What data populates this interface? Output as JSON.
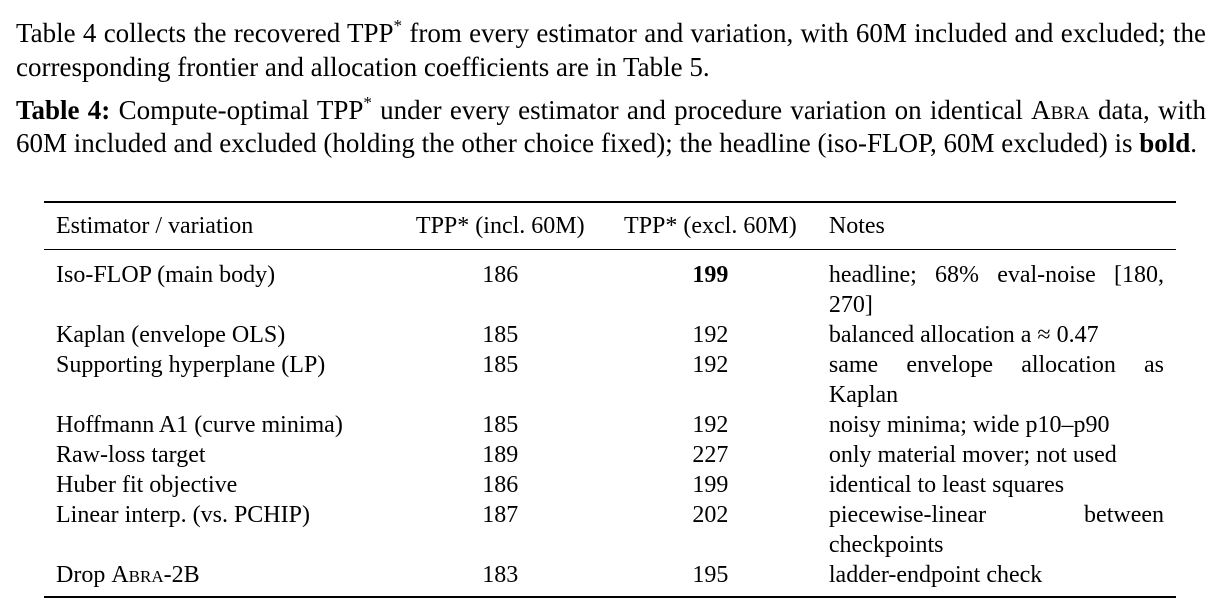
{
  "intro": {
    "part1": "Table 4 collects the recovered ",
    "tpp": "TPP",
    "sup": "*",
    "part2": " from every estimator and variation, with 60M included and excluded; the corresponding frontier and allocation coefficients are in Table 5."
  },
  "caption": {
    "label": "Table 4:",
    "text1": " Compute-optimal ",
    "tpp": "TPP",
    "sup": "*",
    "text2": " under every estimator and procedure variation on identical ",
    "abra": "Abra",
    "text3": " data, with 60M included and excluded (holding the other choice fixed); the headline (iso-FLOP, 60M excluded) is ",
    "bold_word": "bold",
    "text4": "."
  },
  "table": {
    "headers": [
      "Estimator / variation",
      "TPP* (incl. 60M)",
      "TPP* (excl. 60M)",
      "Notes"
    ],
    "rows": [
      {
        "estimator": "Iso-FLOP (main body)",
        "incl": "186",
        "excl": "199",
        "notes": "headline; 68% eval-noise [180, 270]"
      },
      {
        "estimator": "Kaplan (envelope OLS)",
        "incl": "185",
        "excl": "192",
        "notes": "balanced allocation a ≈ 0.47"
      },
      {
        "estimator": "Supporting hyperplane (LP)",
        "incl": "185",
        "excl": "192",
        "notes": "same envelope allocation as Kaplan"
      },
      {
        "estimator": "Hoffmann A1 (curve minima)",
        "incl": "185",
        "excl": "192",
        "notes": "noisy minima; wide p10–p90"
      },
      {
        "estimator": "Raw-loss target",
        "incl": "189",
        "excl": "227",
        "notes": "only material mover; not used"
      },
      {
        "estimator": "Huber fit objective",
        "incl": "186",
        "excl": "199",
        "notes": "identical to least squares"
      },
      {
        "estimator": "Linear interp. (vs. PCHIP)",
        "incl": "187",
        "excl": "202",
        "notes": "piecewise-linear between checkpoints"
      },
      {
        "estimator_prefix": "Drop ",
        "estimator_sc": "Abra",
        "estimator_suffix": "-2B",
        "incl": "183",
        "excl": "195",
        "notes": "ladder-endpoint check"
      }
    ]
  }
}
